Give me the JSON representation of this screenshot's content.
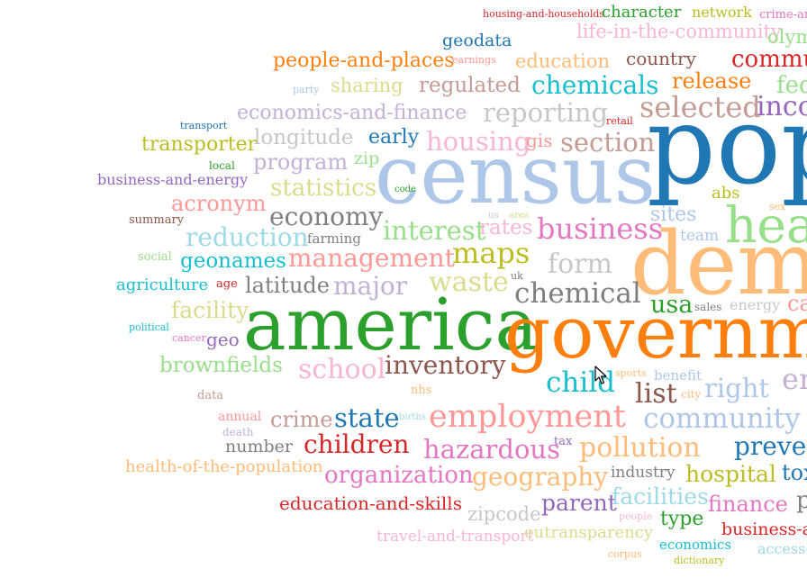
{
  "words": [
    {
      "text": "housing-and-households",
      "color": "#d62728"
    },
    {
      "text": "character",
      "color": "#2ca02c"
    },
    {
      "text": "network",
      "color": "#bcbd22"
    },
    {
      "text": "crime-ar",
      "color": "#e377c2"
    },
    {
      "text": "geodata",
      "color": "#1f77b4"
    },
    {
      "text": "life-in-the-community",
      "color": "#f7b6d2"
    },
    {
      "text": "olym",
      "color": "#98df8a"
    },
    {
      "text": "people-and-places",
      "color": "#ff7f0e"
    },
    {
      "text": "earnings",
      "color": "#ff9896"
    },
    {
      "text": "education",
      "color": "#ffbb78"
    },
    {
      "text": "country",
      "color": "#8c564b"
    },
    {
      "text": "commu",
      "color": "#d62728"
    },
    {
      "text": "party",
      "color": "#aec7e8"
    },
    {
      "text": "sharing",
      "color": "#dbdb8d"
    },
    {
      "text": "regulated",
      "color": "#c49c94"
    },
    {
      "text": "chemicals",
      "color": "#17becf"
    },
    {
      "text": "release",
      "color": "#ff7f0e"
    },
    {
      "text": "fed",
      "color": "#98df8a"
    },
    {
      "text": "pop",
      "color": "#1f77b4"
    },
    {
      "text": "transport",
      "color": "#1f77b4"
    },
    {
      "text": "economics-and-finance",
      "color": "#c5b0d5"
    },
    {
      "text": "reporting",
      "color": "#c7c7c7"
    },
    {
      "text": "retail",
      "color": "#d62728"
    },
    {
      "text": "selected",
      "color": "#c49c94"
    },
    {
      "text": "inco",
      "color": "#9467bd"
    },
    {
      "text": "transporter",
      "color": "#bcbd22"
    },
    {
      "text": "longitude",
      "color": "#c7c7c7"
    },
    {
      "text": "early",
      "color": "#1f77b4"
    },
    {
      "text": "housing",
      "color": "#f7b6d2"
    },
    {
      "text": "gis",
      "color": "#ff9896"
    },
    {
      "text": "section",
      "color": "#c49c94"
    },
    {
      "text": "census",
      "color": "#aec7e8"
    },
    {
      "text": "local",
      "color": "#2ca02c"
    },
    {
      "text": "zip",
      "color": "#98df8a"
    },
    {
      "text": "program",
      "color": "#c5b0d5"
    },
    {
      "text": "business-and-energy",
      "color": "#9467bd"
    },
    {
      "text": "code",
      "color": "#2ca02c"
    },
    {
      "text": "statistics",
      "color": "#dbdb8d"
    },
    {
      "text": "abs",
      "color": "#bcbd22"
    },
    {
      "text": "sex",
      "color": "#ffbb78"
    },
    {
      "text": "acronym",
      "color": "#ff9896"
    },
    {
      "text": "heal",
      "color": "#98df8a"
    },
    {
      "text": "summary",
      "color": "#8c564b"
    },
    {
      "text": "economy",
      "color": "#7f7f7f"
    },
    {
      "text": "us",
      "color": "#c7c7c7"
    },
    {
      "text": "area",
      "color": "#dbdb8d"
    },
    {
      "text": "sites",
      "color": "#aec7e8"
    },
    {
      "text": "reduction",
      "color": "#9edae5"
    },
    {
      "text": "farming",
      "color": "#7f7f7f"
    },
    {
      "text": "interest",
      "color": "#98df8a"
    },
    {
      "text": "rates",
      "color": "#f7b6d2"
    },
    {
      "text": "business",
      "color": "#e377c2"
    },
    {
      "text": "team",
      "color": "#aec7e8"
    },
    {
      "text": "demo",
      "color": "#ffbb78"
    },
    {
      "text": "social",
      "color": "#98df8a"
    },
    {
      "text": "geonames",
      "color": "#17becf"
    },
    {
      "text": "management",
      "color": "#ff9896"
    },
    {
      "text": "maps",
      "color": "#bcbd22"
    },
    {
      "text": "form",
      "color": "#c7c7c7"
    },
    {
      "text": "agriculture",
      "color": "#17becf"
    },
    {
      "text": "age",
      "color": "#d62728"
    },
    {
      "text": "latitude",
      "color": "#7f7f7f"
    },
    {
      "text": "major",
      "color": "#c5b0d5"
    },
    {
      "text": "waste",
      "color": "#dbdb8d"
    },
    {
      "text": "uk",
      "color": "#7f7f7f"
    },
    {
      "text": "chemical",
      "color": "#7f7f7f"
    },
    {
      "text": "usa",
      "color": "#2ca02c"
    },
    {
      "text": "energy",
      "color": "#c7c7c7"
    },
    {
      "text": "ca",
      "color": "#ff9896"
    },
    {
      "text": "sales",
      "color": "#7f7f7f"
    },
    {
      "text": "facility",
      "color": "#dbdb8d"
    },
    {
      "text": "political",
      "color": "#17becf"
    },
    {
      "text": "america",
      "color": "#2ca02c"
    },
    {
      "text": "governm",
      "color": "#ff7f0e"
    },
    {
      "text": "cancer",
      "color": "#e377c2"
    },
    {
      "text": "geo",
      "color": "#9467bd"
    },
    {
      "text": "brownfields",
      "color": "#98df8a"
    },
    {
      "text": "school",
      "color": "#f7b6d2"
    },
    {
      "text": "inventory",
      "color": "#8c564b"
    },
    {
      "text": "sports",
      "color": "#ffbb78"
    },
    {
      "text": "benefit",
      "color": "#aec7e8"
    },
    {
      "text": "child",
      "color": "#17becf"
    },
    {
      "text": "en",
      "color": "#c5b0d5"
    },
    {
      "text": "data",
      "color": "#c49c94"
    },
    {
      "text": "nhs",
      "color": "#ffbb78"
    },
    {
      "text": "list",
      "color": "#8c564b"
    },
    {
      "text": "city",
      "color": "#ffbb78"
    },
    {
      "text": "right",
      "color": "#aec7e8"
    },
    {
      "text": "annual",
      "color": "#ff9896"
    },
    {
      "text": "crime",
      "color": "#c49c94"
    },
    {
      "text": "state",
      "color": "#1f77b4"
    },
    {
      "text": "births",
      "color": "#9edae5"
    },
    {
      "text": "employment",
      "color": "#ff9896"
    },
    {
      "text": "community",
      "color": "#aec7e8"
    },
    {
      "text": "death",
      "color": "#c5b0d5"
    },
    {
      "text": "number",
      "color": "#7f7f7f"
    },
    {
      "text": "children",
      "color": "#d62728"
    },
    {
      "text": "hazardous",
      "color": "#e377c2"
    },
    {
      "text": "tax",
      "color": "#9467bd"
    },
    {
      "text": "pollution",
      "color": "#ffbb78"
    },
    {
      "text": "preven",
      "color": "#1f77b4"
    },
    {
      "text": "health-of-the-population",
      "color": "#ffbb78"
    },
    {
      "text": "organization",
      "color": "#e377c2"
    },
    {
      "text": "geography",
      "color": "#ffbb78"
    },
    {
      "text": "industry",
      "color": "#7f7f7f"
    },
    {
      "text": "hospital",
      "color": "#bcbd22"
    },
    {
      "text": "tox",
      "color": "#1f77b4"
    },
    {
      "text": "education-and-skills",
      "color": "#d62728"
    },
    {
      "text": "parent",
      "color": "#9467bd"
    },
    {
      "text": "facilities",
      "color": "#9edae5"
    },
    {
      "text": "finance",
      "color": "#e377c2"
    },
    {
      "text": "p",
      "color": "#7f7f7f"
    },
    {
      "text": "zipcode",
      "color": "#c7c7c7"
    },
    {
      "text": "people",
      "color": "#f7b6d2"
    },
    {
      "text": "type",
      "color": "#2ca02c"
    },
    {
      "text": "business-an",
      "color": "#d62728"
    },
    {
      "text": "travel-and-transport",
      "color": "#f7b6d2"
    },
    {
      "text": "eutransparency",
      "color": "#dbdb8d"
    },
    {
      "text": "economics",
      "color": "#17becf"
    },
    {
      "text": "access-",
      "color": "#9edae5"
    },
    {
      "text": "corpus",
      "color": "#ffbb78"
    },
    {
      "text": "dictionary",
      "color": "#bcbd22"
    }
  ]
}
